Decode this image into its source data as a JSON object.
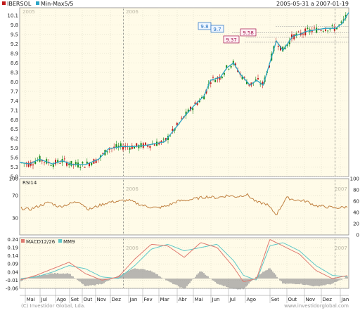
{
  "header": {
    "symbol": "IBERSOL",
    "indicator": "Min-Max5/5",
    "date_range": "2005-05-31 a 2007-01-19"
  },
  "colors": {
    "panel_bg": "#fffbe8",
    "grid": "#d8d4c0",
    "price_line": "#2aa4c6",
    "candle_up": "#1a8a1a",
    "candle_down": "#c01818",
    "rsi_line": "#c08040",
    "macd_line": "#e07a70",
    "signal_line": "#60c8c8",
    "hist": "#9a9a9a",
    "label_blue": "#2470c0",
    "label_red": "#a0104a"
  },
  "price_panel": {
    "year_labels": [
      "2005",
      "2006",
      "2007"
    ],
    "y_ticks": [
      "5.0",
      "5.3",
      "5.6",
      "5.9",
      "6.2",
      "6.5",
      "6.8",
      "7.1",
      "7.4",
      "7.7",
      "8.0",
      "8.3",
      "8.6",
      "8.9",
      "9.2",
      "9.5",
      "9.8",
      "10.1"
    ],
    "annotations": [
      "9.8",
      "9.7",
      "9.58",
      "9.37"
    ]
  },
  "rsi_panel": {
    "title": "RSI14",
    "left_ticks": [
      "100",
      "70",
      "30"
    ],
    "right_ticks": [
      "100",
      "80",
      "60",
      "40",
      "20",
      "0"
    ],
    "year_labels": [
      "2005",
      "2006",
      "2007"
    ]
  },
  "macd_panel": {
    "title": "MACD12/26",
    "signal_title": "MM9",
    "y_ticks": [
      "0.24",
      "0.19",
      "0.14",
      "0.09",
      "0.04",
      "-0.01",
      "-0.06"
    ],
    "year_labels": [
      "2005",
      "2006",
      "2007"
    ]
  },
  "x_axis": {
    "month_labels": [
      "Mai",
      "Jul",
      "Ago",
      "Set",
      "Out",
      "Nov",
      "Dez",
      "Jan",
      "Fev",
      "Mar",
      "Abr",
      "Mai",
      "Jun",
      "Jul",
      "Ago",
      "Set",
      "Out",
      "Nov",
      "Dez",
      "Jan"
    ]
  },
  "footer": {
    "copyright": "(C) Investidor Global, Lda.",
    "url": "www.investidorglobal.com"
  },
  "chart_data": [
    {
      "type": "line",
      "title": "IBERSOL",
      "series": [
        {
          "name": "Min-Max5/5",
          "x": [
            0,
            0.03,
            0.06,
            0.1,
            0.13,
            0.16,
            0.2,
            0.24,
            0.27,
            0.31,
            0.35,
            0.39,
            0.44,
            0.48,
            0.5,
            0.53,
            0.56,
            0.58,
            0.61,
            0.63,
            0.65,
            0.67,
            0.7,
            0.72,
            0.74,
            0.77,
            0.78,
            0.8,
            0.83,
            0.85,
            0.87,
            0.9,
            0.93,
            0.96,
            0.98,
            1.0
          ],
          "values": [
            5.45,
            5.4,
            5.55,
            5.4,
            5.5,
            5.38,
            5.38,
            5.55,
            5.88,
            5.95,
            5.95,
            6.0,
            6.1,
            6.62,
            6.9,
            7.25,
            7.55,
            8.05,
            8.15,
            8.45,
            8.6,
            8.25,
            7.9,
            8.05,
            7.9,
            8.95,
            9.3,
            9.0,
            9.45,
            9.5,
            9.6,
            9.65,
            9.7,
            9.7,
            9.85,
            10.2
          ]
        }
      ],
      "ylim": [
        5.0,
        10.35
      ],
      "annotations": [
        9.8,
        9.7,
        9.58,
        9.37
      ]
    },
    {
      "type": "line",
      "title": "RSI14",
      "series": [
        {
          "name": "RSI14",
          "x": [
            0,
            0.03,
            0.06,
            0.09,
            0.12,
            0.15,
            0.18,
            0.21,
            0.24,
            0.27,
            0.3,
            0.33,
            0.36,
            0.39,
            0.42,
            0.45,
            0.48,
            0.51,
            0.54,
            0.57,
            0.6,
            0.63,
            0.66,
            0.69,
            0.72,
            0.75,
            0.78,
            0.81,
            0.84,
            0.87,
            0.9,
            0.93,
            0.96,
            1.0
          ],
          "values": [
            48,
            45,
            52,
            58,
            50,
            55,
            60,
            45,
            52,
            58,
            60,
            62,
            55,
            50,
            48,
            52,
            60,
            62,
            65,
            68,
            66,
            70,
            68,
            72,
            58,
            55,
            36,
            66,
            62,
            60,
            52,
            50,
            48,
            50
          ]
        }
      ],
      "ylim": [
        0,
        100
      ]
    },
    {
      "type": "line",
      "title": "MACD12/26",
      "series": [
        {
          "name": "MACD12/26",
          "x": [
            0,
            0.05,
            0.1,
            0.15,
            0.2,
            0.25,
            0.3,
            0.35,
            0.4,
            0.45,
            0.5,
            0.55,
            0.6,
            0.65,
            0.68,
            0.72,
            0.76,
            0.8,
            0.85,
            0.9,
            0.95,
            1.0
          ],
          "values": [
            -0.01,
            0.02,
            0.06,
            0.1,
            0.03,
            -0.01,
            0.01,
            0.12,
            0.21,
            0.2,
            0.13,
            0.22,
            0.19,
            0.07,
            -0.02,
            0.0,
            0.24,
            0.2,
            0.15,
            0.05,
            0.0,
            0.02
          ]
        },
        {
          "name": "MM9",
          "x": [
            0,
            0.05,
            0.1,
            0.15,
            0.2,
            0.25,
            0.3,
            0.35,
            0.4,
            0.45,
            0.5,
            0.55,
            0.6,
            0.65,
            0.68,
            0.72,
            0.76,
            0.8,
            0.85,
            0.9,
            0.95,
            1.0
          ],
          "values": [
            0.0,
            0.01,
            0.04,
            0.08,
            0.06,
            0.01,
            0.0,
            0.08,
            0.18,
            0.21,
            0.17,
            0.19,
            0.21,
            0.11,
            0.02,
            -0.01,
            0.2,
            0.22,
            0.17,
            0.08,
            0.02,
            0.01
          ]
        }
      ],
      "ylim": [
        -0.06,
        0.25
      ]
    }
  ]
}
